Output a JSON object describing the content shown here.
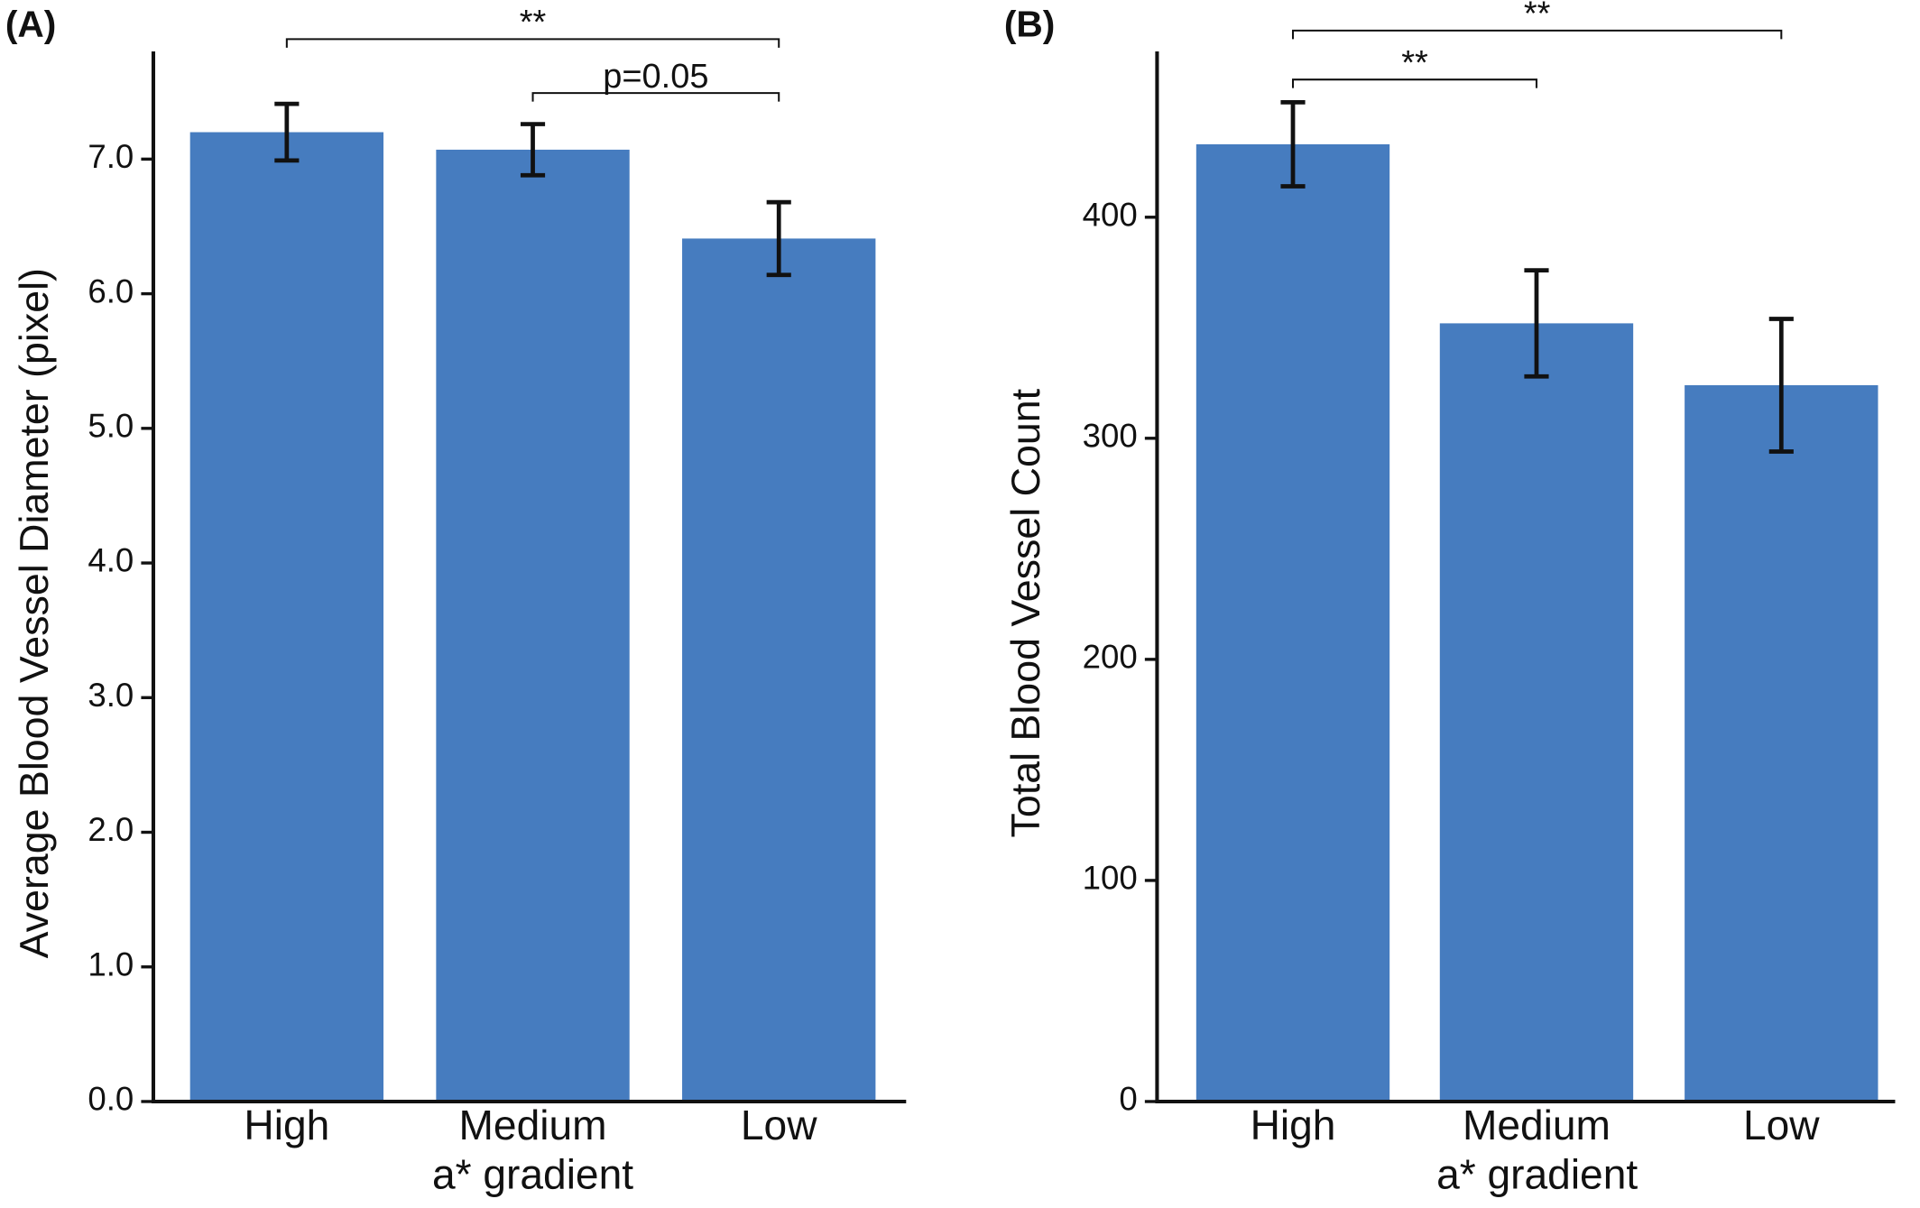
{
  "chart_data": [
    {
      "type": "bar",
      "panel": "(A)",
      "y_label": "Average Blood Vessel Diameter (pixel)",
      "x_label": "a* gradient",
      "categories": [
        "High",
        "Medium",
        "Low"
      ],
      "values": [
        7.2,
        7.07,
        6.41
      ],
      "errors": [
        0.21,
        0.19,
        0.27
      ],
      "color": "#467cbf",
      "ylim": [
        0,
        7.8
      ],
      "yticks": [
        {
          "value": 0,
          "label": "0.0"
        },
        {
          "value": 1,
          "label": "1.0"
        },
        {
          "value": 2,
          "label": "2.0"
        },
        {
          "value": 3,
          "label": "3.0"
        },
        {
          "value": 4,
          "label": "4.0"
        },
        {
          "value": 5,
          "label": "5.0"
        },
        {
          "value": 6,
          "label": "6.0"
        },
        {
          "value": 7,
          "label": "7.0"
        }
      ],
      "annotations": [
        {
          "text": "**",
          "between": [
            0,
            2
          ]
        },
        {
          "text": "p=0.05",
          "between": [
            1,
            2
          ]
        }
      ]
    },
    {
      "type": "bar",
      "panel": "(B)",
      "y_label": "Total Blood Vessel Count",
      "x_label": "a* gradient",
      "categories": [
        "High",
        "Medium",
        "Low"
      ],
      "values": [
        433,
        352,
        324
      ],
      "errors": [
        19,
        24,
        30
      ],
      "color": "#467cbf",
      "ylim": [
        0,
        475
      ],
      "yticks": [
        0,
        100,
        200,
        300,
        400
      ],
      "annotations": [
        {
          "text": "**",
          "between": [
            0,
            2
          ]
        },
        {
          "text": "**",
          "between": [
            0,
            1
          ]
        }
      ]
    }
  ]
}
